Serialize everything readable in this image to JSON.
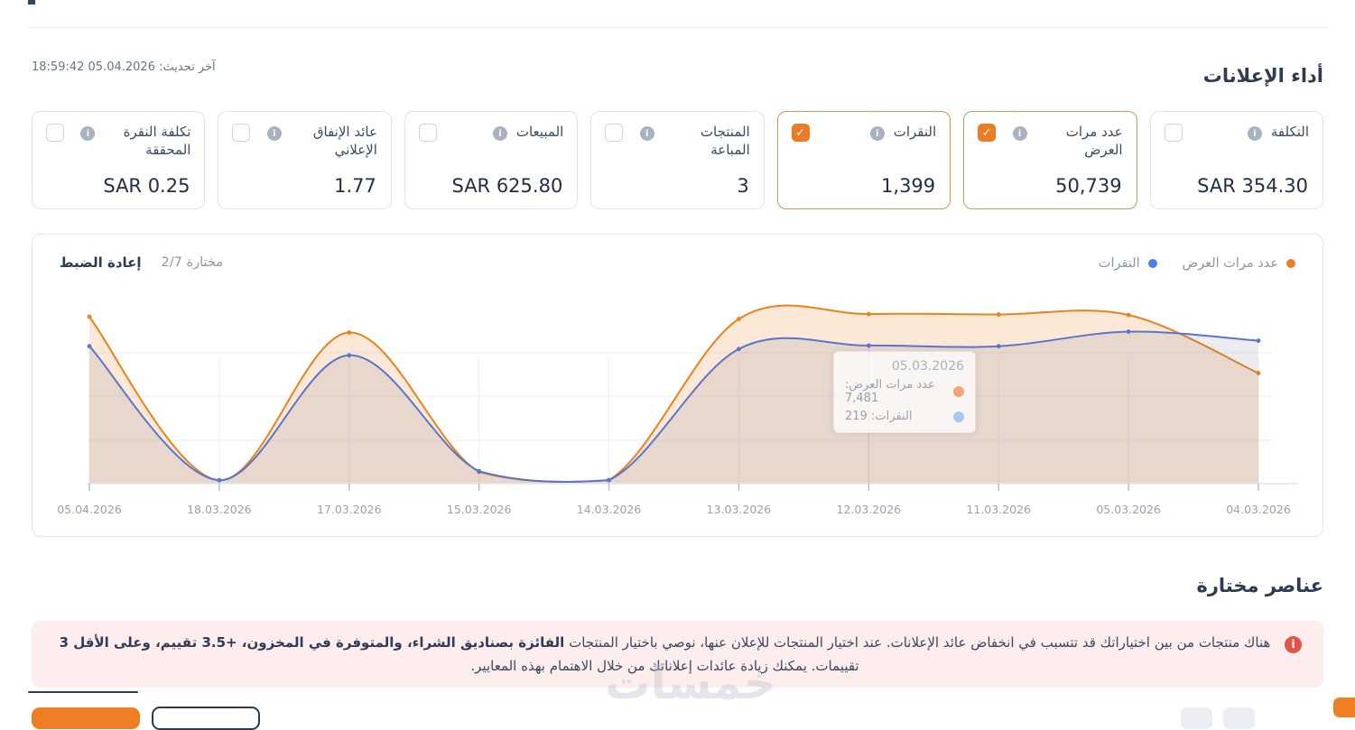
{
  "header": {
    "title": "أداء الإعلانات",
    "last_update": "آخر تحديث: 05.04.2026 18:59:42"
  },
  "metrics": [
    {
      "label": "التكلفة",
      "value": "SAR 354.30",
      "checked": false
    },
    {
      "label": "عدد مرات العرض",
      "value": "50,739",
      "checked": true
    },
    {
      "label": "النقرات",
      "value": "1,399",
      "checked": true
    },
    {
      "label": "المنتجات المباعة",
      "value": "3",
      "checked": false
    },
    {
      "label": "المبيعات",
      "value": "SAR 625.80",
      "checked": false
    },
    {
      "label": "عائد الإنفاق الإعلاني",
      "value": "1.77",
      "checked": false
    },
    {
      "label": "تكلفة النقرة المحققة",
      "value": "SAR 0.25",
      "checked": false
    }
  ],
  "chart_panel": {
    "reset_label": "إعادة الضبط",
    "selected_label": "مختارة 2/7",
    "legend": [
      {
        "label": "عدد مرات العرض",
        "color": "#ed7d23"
      },
      {
        "label": "النقرات",
        "color": "#4a7df0"
      }
    ],
    "tooltip": {
      "date": "05.03.2026",
      "row1": "عدد مرات العرض: 7,481",
      "row2": "النقرات: 219"
    }
  },
  "chart_data": {
    "type": "area",
    "rtl": true,
    "categories": [
      "05.04.2026",
      "18.03.2026",
      "17.03.2026",
      "15.03.2026",
      "14.03.2026",
      "13.03.2026",
      "12.03.2026",
      "11.03.2026",
      "05.03.2026",
      "04.03.2026"
    ],
    "series": [
      {
        "name": "عدد مرات العرض",
        "color": "#e8831f",
        "fill": "rgba(243,150,72,0.22)",
        "ymax": 8000,
        "values": [
          7400,
          150,
          6700,
          520,
          160,
          7300,
          7520,
          7500,
          7481,
          4900
        ]
      },
      {
        "name": "النقرات",
        "color": "#5b74cc",
        "fill": "rgba(112,113,148,0.14)",
        "ymax": 260,
        "values": [
          198,
          5,
          185,
          18,
          5,
          194,
          199,
          198,
          219,
          206
        ]
      }
    ],
    "hover_point": {
      "category": "05.03.2026",
      "impressions": 7481,
      "clicks": 219
    },
    "crosshair_index": 6,
    "grid": "horizontal-and-vertical",
    "legend_position": "top-right",
    "axis_color": "#98a1b1"
  },
  "selected_items": {
    "title": "عناصر مختارة"
  },
  "warning": {
    "text1": "هناك منتجات من بين اختياراتك قد تتسبب في انخفاض عائد الإعلانات. عند اختيار المنتجات للإعلان عنها، نوصي باختيار المنتجات ",
    "bold": "الفائزة بصناديق الشراء، والمتوفرة في المخزون، ‎3.5+‎ تقييم، وعلى الأقل 3 ",
    "text2": "تقييمات. يمكنك زيادة عائدات إعلاناتك من خلال الاهتمام بهذه المعايير."
  },
  "watermark": {
    "text": "خمسات"
  },
  "ui_colors": {
    "accent_orange": "#ee7d23",
    "navy_text": "#2e3b52",
    "warning_bg": "#fdeeed",
    "warning_icon": "#e05548"
  }
}
